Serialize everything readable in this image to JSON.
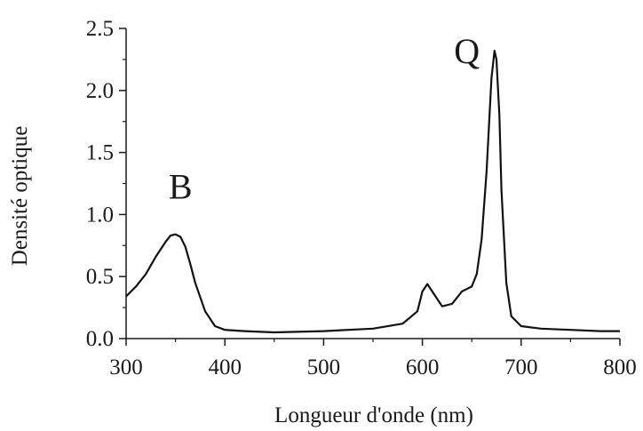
{
  "chart_data": {
    "type": "line",
    "title": "",
    "xlabel": "Longueur d'onde (nm)",
    "ylabel": "Densité optique",
    "xlim": [
      300,
      800
    ],
    "ylim": [
      0,
      2.5
    ],
    "x_ticks": [
      300,
      400,
      500,
      600,
      700,
      800
    ],
    "x_tick_labels": [
      "300",
      "400",
      "500",
      "600",
      "700",
      "800"
    ],
    "y_ticks": [
      0,
      0.5,
      1,
      1.5,
      2,
      2.5
    ],
    "y_tick_labels": [
      "0.0",
      "0.5",
      "1.0",
      "1.5",
      "2.0",
      "2.5"
    ],
    "grid": false,
    "line_color": "#111111",
    "annotations": [
      {
        "text": "B",
        "x": 355,
        "y": 1.13
      },
      {
        "text": "Q",
        "x": 645,
        "y": 2.22
      }
    ],
    "series": [
      {
        "x": [
          300,
          310,
          320,
          330,
          340,
          345,
          350,
          355,
          360,
          365,
          370,
          380,
          390,
          400,
          420,
          450,
          500,
          550,
          580,
          595,
          600,
          605,
          610,
          620,
          630,
          640,
          645,
          650,
          655,
          660,
          665,
          670,
          673,
          675,
          678,
          680,
          685,
          690,
          700,
          720,
          750,
          780,
          800
        ],
        "y": [
          0.34,
          0.42,
          0.52,
          0.66,
          0.78,
          0.83,
          0.84,
          0.82,
          0.74,
          0.6,
          0.45,
          0.22,
          0.1,
          0.07,
          0.06,
          0.05,
          0.06,
          0.08,
          0.12,
          0.22,
          0.38,
          0.44,
          0.38,
          0.26,
          0.28,
          0.38,
          0.4,
          0.42,
          0.52,
          0.8,
          1.35,
          2.1,
          2.32,
          2.25,
          1.8,
          1.2,
          0.45,
          0.18,
          0.1,
          0.08,
          0.07,
          0.06,
          0.06
        ]
      }
    ]
  }
}
